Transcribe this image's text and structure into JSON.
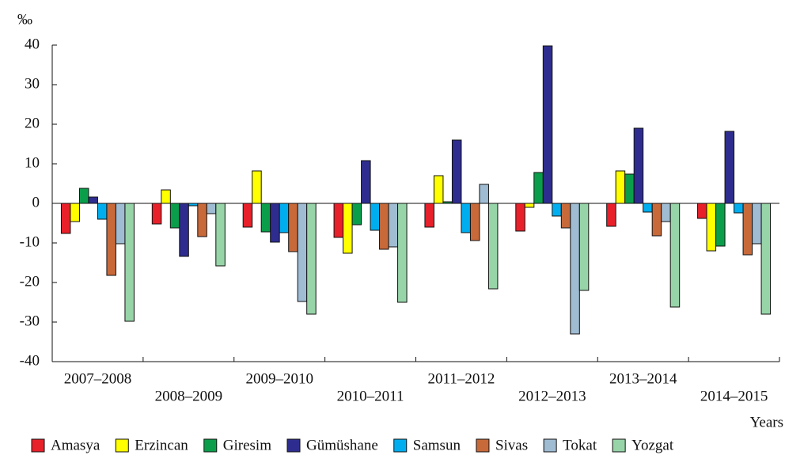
{
  "chart_data": {
    "type": "bar",
    "y_label": "‰",
    "x_label": "Years",
    "categories": [
      "2007–2008",
      "2008–2009",
      "2009–2010",
      "2010–2011",
      "2011–2012",
      "2012–2013",
      "2013–2014",
      "2014–2015"
    ],
    "series": [
      {
        "name": "Amasya",
        "color": "#e8202a",
        "values": [
          -7.6,
          -5.2,
          -6,
          -8.6,
          -6,
          -7,
          -5.8,
          -3.8
        ]
      },
      {
        "name": "Erzincan",
        "color": "#ffff00",
        "values": [
          -4.6,
          3.4,
          8.2,
          -12.6,
          7,
          -1,
          8.2,
          -12
        ]
      },
      {
        "name": "Giresim",
        "color": "#0a9e4a",
        "values": [
          3.8,
          -6.2,
          -7.2,
          -5.4,
          0.4,
          7.8,
          7.4,
          -10.8
        ]
      },
      {
        "name": "Gümüshane",
        "color": "#2e2d8f",
        "values": [
          1.6,
          -13.4,
          -9.8,
          10.8,
          16,
          39.8,
          19,
          18.2
        ]
      },
      {
        "name": "Samsun",
        "color": "#00aeef",
        "values": [
          -4,
          -0.6,
          -7.4,
          -6.8,
          -7.4,
          -3.2,
          -2.2,
          -2.4
        ]
      },
      {
        "name": "Sivas",
        "color": "#c8693a",
        "values": [
          -18.2,
          -8.4,
          -12.2,
          -11.6,
          -9.4,
          -6.2,
          -8.2,
          -13
        ]
      },
      {
        "name": "Tokat",
        "color": "#9fbcd2",
        "values": [
          -10.2,
          -2.6,
          -24.8,
          -11,
          4.8,
          -33,
          -4.6,
          -10.2
        ]
      },
      {
        "name": "Yozgat",
        "color": "#97d4a8",
        "values": [
          -29.8,
          -15.8,
          -28,
          -25,
          -21.6,
          -22,
          -26.2,
          -28
        ]
      }
    ],
    "ylim": [
      -40,
      40
    ],
    "yticks": [
      -40,
      -30,
      -20,
      -10,
      0,
      10,
      20,
      30,
      40
    ]
  }
}
